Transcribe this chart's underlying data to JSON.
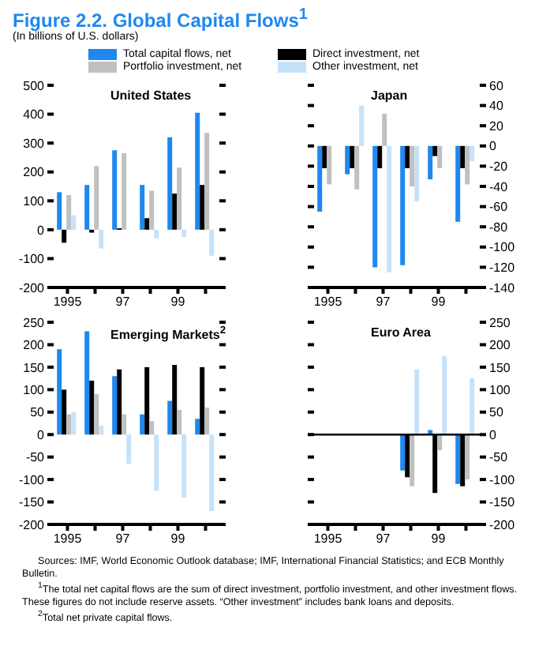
{
  "chart_data": [
    {
      "type": "other",
      "title": "Figure 2.2. Global Capital Flows$^{1}$",
      "subtitle": "(In billions of U.S. dollars)",
      "annotations": [
        "Sources: IMF, World Economic Outlook database; IMF, International Financial Statistics; and ECB Monthly Bulletin.",
        "$^{1}$The total net capital flows are the sum of direct investment, portfolio investment, and other investment flows. These figures do not include reserve assets. “Other investment” includes bank loans and deposits.",
        "$^{2}$Total net private capital flows."
      ]
    },
    {
      "type": "bar",
      "title": "United States",
      "categories": [
        "1995",
        null,
        "97",
        null,
        "99",
        null
      ],
      "legend": "top",
      "ylim": [
        -200,
        500
      ],
      "yticks": [
        -200,
        -100,
        0,
        100,
        200,
        300,
        400,
        500
      ],
      "series": [
        {
          "name": "Total capital flows, net",
          "color": "#1e88f0",
          "values": [
            130,
            155,
            275,
            155,
            320,
            405
          ]
        },
        {
          "name": "Direct investment, net",
          "color": "#000000",
          "values": [
            -45,
            -10,
            5,
            40,
            125,
            155
          ]
        },
        {
          "name": "Portfolio investment, net",
          "color": "#c0c0c0",
          "values": [
            120,
            220,
            265,
            135,
            215,
            335
          ]
        },
        {
          "name": "Other investment, net",
          "color": "#c6e2fa",
          "values": [
            50,
            -65,
            0,
            -30,
            -25,
            -90
          ]
        }
      ]
    },
    {
      "type": "bar",
      "title": "Japan",
      "categories": [
        "1995",
        null,
        "97",
        null,
        "99",
        null
      ],
      "ylim": [
        -140,
        60
      ],
      "yticks": [
        -140,
        -120,
        -100,
        -80,
        -60,
        -40,
        -20,
        0,
        20,
        40,
        60
      ],
      "series": [
        {
          "color": "#1e88f0",
          "values": [
            -65,
            -28,
            -120,
            -118,
            -33,
            -75
          ]
        },
        {
          "color": "#000000",
          "values": [
            -22,
            -22,
            -22,
            -22,
            -10,
            -22
          ]
        },
        {
          "color": "#c0c0c0",
          "values": [
            -38,
            -43,
            32,
            -40,
            -22,
            -38
          ]
        },
        {
          "color": "#c6e2fa",
          "values": [
            0,
            40,
            -125,
            -55,
            0,
            -15
          ]
        }
      ]
    },
    {
      "type": "bar",
      "title": "Emerging Markets$^{2}$",
      "categories": [
        "1995",
        null,
        "97",
        null,
        "99",
        null
      ],
      "ylim": [
        -200,
        250
      ],
      "yticks": [
        -200,
        -150,
        -100,
        -50,
        0,
        50,
        100,
        150,
        200,
        250
      ],
      "series": [
        {
          "color": "#1e88f0",
          "values": [
            190,
            230,
            130,
            45,
            75,
            35
          ]
        },
        {
          "color": "#000000",
          "values": [
            100,
            120,
            145,
            150,
            155,
            150
          ]
        },
        {
          "color": "#c0c0c0",
          "values": [
            45,
            90,
            45,
            30,
            55,
            60
          ]
        },
        {
          "color": "#c6e2fa",
          "values": [
            50,
            20,
            -65,
            -125,
            -140,
            -170
          ]
        }
      ]
    },
    {
      "type": "bar",
      "title": "Euro Area",
      "categories": [
        "1995",
        null,
        "97",
        null,
        "99",
        null
      ],
      "ylim": [
        -200,
        250
      ],
      "yticks": [
        -200,
        -150,
        -100,
        -50,
        0,
        50,
        100,
        150,
        200,
        250
      ],
      "ref_lines": [
        {
          "axis": "y",
          "value": 0,
          "color": "#000000"
        }
      ],
      "series": [
        {
          "color": "#1e88f0",
          "values": [
            null,
            null,
            null,
            -80,
            10,
            -110
          ]
        },
        {
          "color": "#000000",
          "values": [
            null,
            null,
            null,
            -95,
            -130,
            -115
          ]
        },
        {
          "color": "#c0c0c0",
          "values": [
            null,
            null,
            null,
            -115,
            -35,
            -100
          ]
        },
        {
          "color": "#c6e2fa",
          "values": [
            null,
            null,
            null,
            145,
            175,
            125
          ]
        }
      ]
    }
  ]
}
